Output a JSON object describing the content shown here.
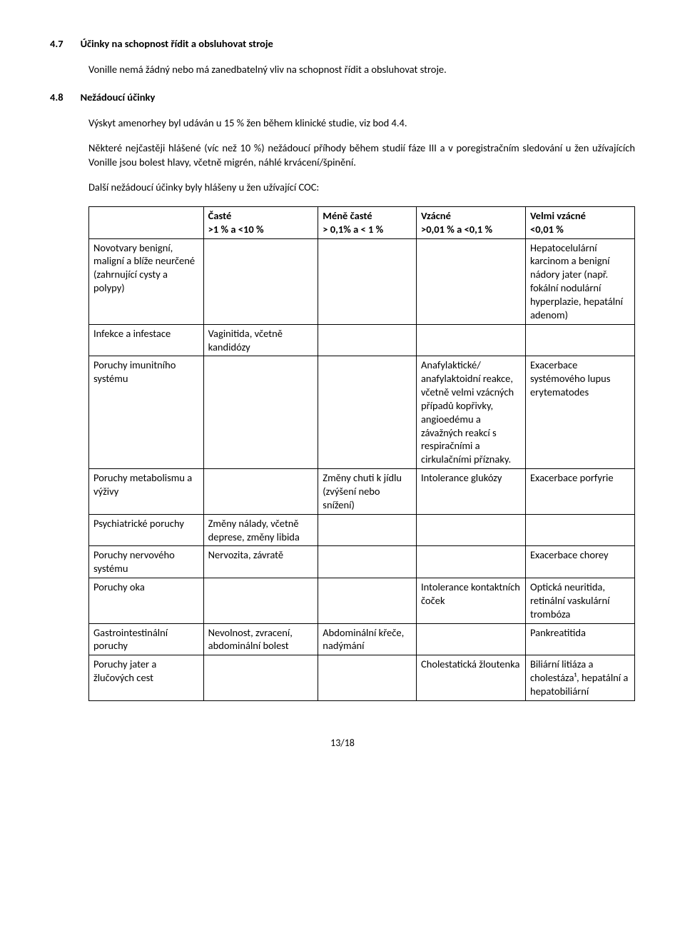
{
  "section47": {
    "num": "4.7",
    "title": "Účinky na schopnost řídit a obsluhovat stroje",
    "body": "Vonille nemá žádný nebo má zanedbatelný vliv na schopnost řídit a obsluhovat stroje."
  },
  "section48": {
    "num": "4.8",
    "title": "Nežádoucí účinky",
    "p1": "Výskyt amenorhey byl udáván u 15 % žen během klinické studie, viz bod 4.4.",
    "p2": "Některé nejčastěji hlášené (víc než 10 %) nežádoucí příhody během studií fáze III a v poregistračním sledování u žen užívajících Vonille jsou bolest hlavy, včetně migrén, náhlé krvácení/špinění.",
    "p3": "Další nežádoucí účinky byly hlášeny u žen užívající COC:"
  },
  "header": {
    "c1a": "Časté",
    "c1b": ">1 % a <10 %",
    "c2a": "Méně časté",
    "c2b": "> 0,1% a < 1 %",
    "c3a": "Vzácné",
    "c3b": ">0,01 % a <0,1 %",
    "c4a": "Velmi vzácné",
    "c4b": "<0,01 %"
  },
  "rows": [
    {
      "c0": " Novotvary benigní, maligní a blíže neurčené (zahrnující cysty a polypy)",
      "c1": "",
      "c2": "",
      "c3": "",
      "c4": "Hepatocelulární karcinom a benigní nádory jater (např. fokální nodulární hyperplazie, hepatální adenom)"
    },
    {
      "c0": "Infekce a infestace",
      "c1": "Vaginitida, včetně kandidózy",
      "c2": "",
      "c3": "",
      "c4": ""
    },
    {
      "c0": "Poruchy imunitního systému",
      "c1": "",
      "c2": "",
      "c3": "Anafylaktické/ anafylaktoidní reakce, včetně velmi vzácných případů kopřivky, angioedému a závažných reakcí s respiračními a cirkulačními příznaky.",
      "c4": "Exacerbace systémového lupus erytematodes"
    },
    {
      "c0": "Poruchy metabolismu a výživy",
      "c1": "",
      "c2": "Změny chuti k jídlu (zvýšení nebo snížení)",
      "c3": "Intolerance glukózy",
      "c4": "Exacerbace porfyrie"
    },
    {
      "c0": "Psychiatrické poruchy",
      "c1": "Změny nálady, včetně deprese, změny libida",
      "c2": "",
      "c3": "",
      "c4": ""
    },
    {
      "c0": "Poruchy nervového systému",
      "c1": "Nervozita, závratě",
      "c2": "",
      "c3": "",
      "c4": "Exacerbace chorey"
    },
    {
      "c0": "Poruchy oka",
      "c1": "",
      "c2": "",
      "c3": "Intolerance kontaktních čoček",
      "c4": "Optická neuritida, retinální vaskulární trombóza"
    },
    {
      "c0": "Gastrointestinální poruchy",
      "c1": "Nevolnost, zvracení, abdominální bolest",
      "c2": "Abdominální křeče, nadýmání",
      "c3": "",
      "c4": "Pankreatitida"
    },
    {
      "c0": "Poruchy jater a žlučových cest",
      "c1": "",
      "c2": "",
      "c3": "Cholestatická žloutenka",
      "c4": "Biliární litiáza a cholestáza¹, hepatální a hepatobiliární"
    }
  ],
  "page_num": "13/18"
}
